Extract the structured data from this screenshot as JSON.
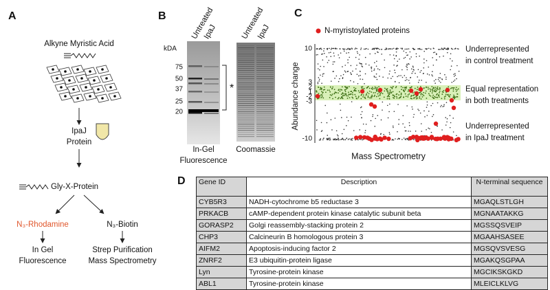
{
  "panel_a": {
    "label": "A",
    "reagent": "Alkyne Myristic Acid",
    "enzyme": [
      "IpaJ",
      "Protein"
    ],
    "product": "Gly-X-Protein",
    "branches": [
      {
        "probe": "N₃-Rhodamine",
        "readout": [
          "In Gel",
          "Fluorescence"
        ]
      },
      {
        "probe": "N₃-Biotin",
        "readout": [
          "Strep Purification",
          "Mass Spectrometry"
        ]
      }
    ]
  },
  "panel_b": {
    "label": "B",
    "lanes": [
      "Untreated",
      "IpaJ"
    ],
    "unit": "kDA",
    "markers": [
      "75",
      "50",
      "37",
      "25",
      "20"
    ],
    "annotation": "*",
    "gels": [
      [
        "In-Gel",
        "Fluorescence"
      ],
      [
        "Coomassie"
      ]
    ]
  },
  "panel_c": {
    "label": "C",
    "legend": "N-myristoylated proteins",
    "y_label": "Abundance change",
    "y_ticks": [
      "10",
      "3",
      "2",
      "1",
      "-2",
      "-3",
      "-10"
    ],
    "annotations": [
      [
        "Underrepresented",
        "in control treatment"
      ],
      [
        "Equal representation",
        "in both treatments"
      ],
      [
        "Underrepresented",
        "in IpaJ treatment"
      ]
    ],
    "x_label": "Mass Spectrometry"
  },
  "panel_d": {
    "label": "D",
    "table": {
      "header": [
        "Gene ID",
        "Description",
        "N-terminal sequence"
      ],
      "rows": [
        [
          "CYB5R3",
          "NADH-cytochrome b5 reductase 3",
          "MGAQLSTLGH"
        ],
        [
          "PRKACB",
          "cAMP-dependent protein kinase catalytic subunit beta",
          "MGNAATAKKG"
        ],
        [
          "GORASP2",
          "Golgi reassembly-stacking protein 2",
          "MGSSQSVEIP"
        ],
        [
          "CHP3",
          "Calcineurin B homologous protein 3",
          "MGAAHSASEE"
        ],
        [
          "AIFM2",
          "Apoptosis-inducing factor 2",
          "MGSQVSVESG"
        ],
        [
          "ZNRF2",
          "E3 ubiquitin-protein ligase",
          "MGAKQSGPAA"
        ],
        [
          "Lyn",
          "Tyrosine-protein kinase",
          "MGCIKSKGKD"
        ],
        [
          "ABL1",
          "Tyrosine-protein kinase",
          "MLEICLKLVG"
        ]
      ]
    }
  }
}
